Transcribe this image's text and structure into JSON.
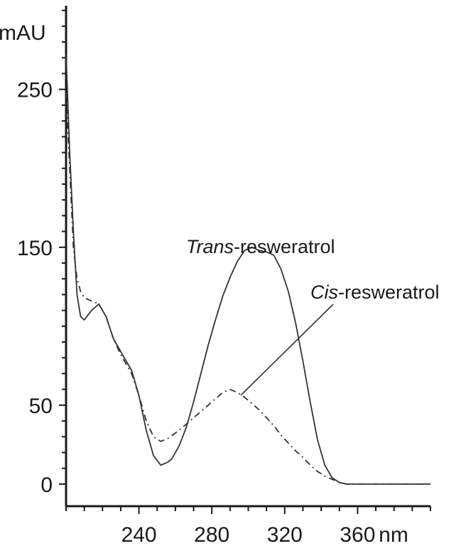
{
  "chart_data": {
    "type": "line",
    "ylabel": "mAU",
    "xlabel": "nm",
    "xlim": [
      200,
      400
    ],
    "ylim": [
      -14,
      303
    ],
    "yticks": [
      0,
      50,
      150,
      250
    ],
    "xticks": [
      240,
      280,
      320,
      360
    ],
    "grid": false,
    "series": [
      {
        "name": "Trans-resweratrol",
        "name_prefix": "Trans",
        "name_suffix": "-resweratrol",
        "color": "#333333",
        "style": "solid",
        "x": [
          200,
          202,
          204,
          206,
          208,
          210,
          214,
          218,
          222,
          226,
          230,
          236,
          240,
          244,
          248,
          252,
          256,
          258,
          262,
          266,
          270,
          274,
          278,
          282,
          286,
          290,
          294,
          298,
          302,
          306,
          310,
          314,
          318,
          322,
          326,
          330,
          334,
          338,
          342,
          346,
          350,
          354,
          358,
          362,
          366,
          370,
          380,
          390,
          400
        ],
        "y": [
          272,
          210,
          160,
          120,
          106,
          104,
          110,
          114,
          106,
          92,
          84,
          72,
          56,
          34,
          18,
          12,
          14,
          16,
          24,
          36,
          52,
          70,
          88,
          104,
          119,
          131,
          141,
          148,
          150,
          148,
          147,
          145,
          136,
          122,
          102,
          78,
          52,
          28,
          12,
          4,
          1,
          0,
          0,
          0,
          0,
          0,
          0,
          0,
          0
        ]
      },
      {
        "name": "Cis-resweratrol",
        "name_prefix": "Cis",
        "name_suffix": "-resweratrol",
        "color": "#555555",
        "style": "dashed",
        "x": [
          200,
          202,
          204,
          206,
          208,
          210,
          214,
          218,
          222,
          226,
          230,
          236,
          240,
          244,
          248,
          252,
          256,
          262,
          268,
          274,
          278,
          282,
          286,
          290,
          294,
          298,
          302,
          306,
          310,
          314,
          318,
          322,
          326,
          330,
          334,
          338,
          342,
          346,
          350,
          354,
          360,
          370,
          380,
          390,
          400
        ],
        "y": [
          248,
          200,
          150,
          130,
          122,
          118,
          116,
          114,
          106,
          92,
          82,
          70,
          56,
          40,
          30,
          27,
          29,
          34,
          40,
          46,
          50,
          54,
          58,
          60,
          58,
          55,
          51,
          47,
          42,
          37,
          31,
          26,
          21,
          17,
          12,
          8,
          5,
          3,
          1,
          0,
          0,
          0,
          0,
          0,
          0
        ]
      }
    ],
    "annotations": [
      {
        "series": 0,
        "prefix": "Trans",
        "suffix": "-resweratrol"
      },
      {
        "series": 1,
        "prefix": "Cis",
        "suffix": "-resweratrol",
        "arrow_to": [
          288,
          59
        ]
      }
    ]
  }
}
